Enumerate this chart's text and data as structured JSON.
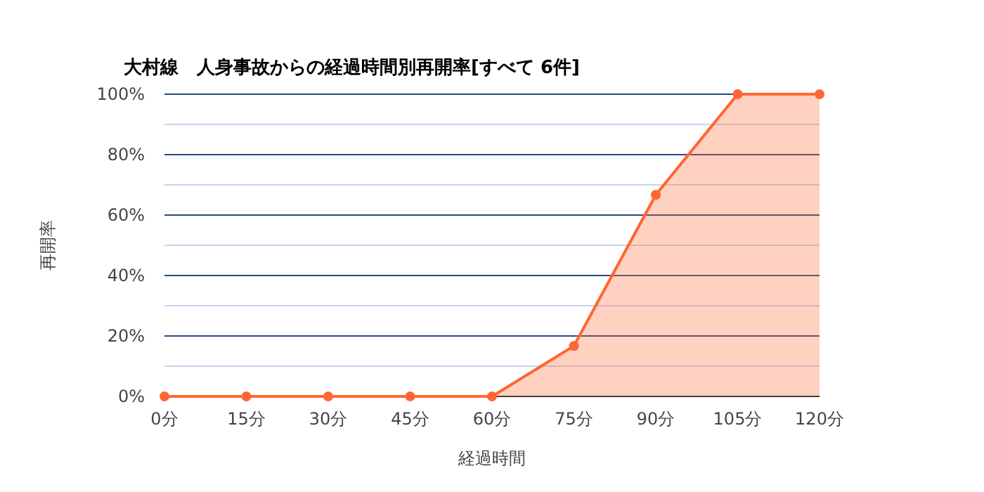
{
  "chart_data": {
    "type": "area",
    "title": "大村線　人身事故からの経過時間別再開率[すべて 6件]",
    "xlabel": "経過時間",
    "ylabel": "再開率",
    "categories": [
      "0分",
      "15分",
      "30分",
      "45分",
      "60分",
      "75分",
      "90分",
      "105分",
      "120分"
    ],
    "series": [
      {
        "color": "#ff6633",
        "values": [
          0,
          0,
          0,
          0,
          0,
          16.7,
          66.7,
          100,
          100
        ]
      }
    ],
    "ylim": [
      0,
      100
    ],
    "yticks": [
      {
        "value": 0,
        "label": "0%"
      },
      {
        "value": 10,
        "label": null
      },
      {
        "value": 20,
        "label": "20%"
      },
      {
        "value": 30,
        "label": null
      },
      {
        "value": 40,
        "label": "40%"
      },
      {
        "value": 50,
        "label": null
      },
      {
        "value": 60,
        "label": "60%"
      },
      {
        "value": 70,
        "label": null
      },
      {
        "value": 80,
        "label": "80%"
      },
      {
        "value": 90,
        "label": null
      },
      {
        "value": 100,
        "label": "100%"
      }
    ],
    "grid": "y",
    "marker": "circle"
  }
}
